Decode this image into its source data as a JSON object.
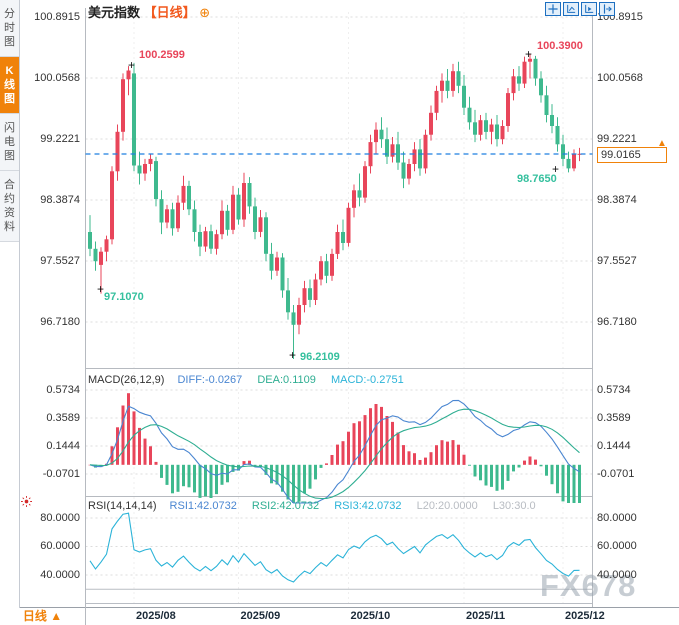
{
  "sidebar": {
    "items": [
      {
        "label": "分时图",
        "active": false
      },
      {
        "label": "K线图",
        "active": true
      },
      {
        "label": "闪电图",
        "active": false
      },
      {
        "label": "合约资料",
        "active": false
      }
    ]
  },
  "header": {
    "title": "美元指数",
    "period_tag": "【日线】",
    "add_icon": "⊕"
  },
  "main_chart": {
    "y_axis_labels": [
      "100.8915",
      "100.0568",
      "99.2221",
      "98.3874",
      "97.5527",
      "96.7180"
    ],
    "annotations": {
      "high1": "100.2599",
      "high2": "100.3900",
      "low1": "97.1070",
      "low2": "96.2109",
      "low3": "98.7650",
      "marker_glyph": "+"
    },
    "price_tag": {
      "value": "99.0165",
      "arrow": "▲"
    }
  },
  "macd_panel": {
    "header": {
      "name": "MACD(26,12,9)",
      "diff": "DIFF:-0.0267",
      "dea": "DEA:0.1109",
      "macd": "MACD:-0.2751"
    },
    "y_axis_labels": [
      "0.5734",
      "0.3589",
      "0.1444",
      "-0.0701"
    ]
  },
  "rsi_panel": {
    "header": {
      "name": "RSI(14,14,14)",
      "rsi1": "RSI1:42.0732",
      "rsi2": "RSI2:42.0732",
      "rsi3": "RSI3:42.0732",
      "l20": "L20:20.0000",
      "l30": "L30:30.0"
    },
    "y_axis_labels": [
      "80.0000",
      "60.0000",
      "40.0000"
    ]
  },
  "x_axis": {
    "labels": [
      "2025/08",
      "2025/09",
      "2025/10",
      "2025/11",
      "2025/12"
    ],
    "period": {
      "label": "日线",
      "arrow": "▲"
    }
  },
  "watermark": "FX678",
  "colors": {
    "up": "#e8455a",
    "down": "#3eb98e",
    "accent_orange": "#f0820a",
    "price_line_blue": "#1f7fe0",
    "diff_blue": "#4a86d1",
    "dea_teal": "#2fae92",
    "macd_cyan": "#2bb3d8",
    "grid": "#dcdcdc",
    "level_gray": "#b9bdc4"
  },
  "chart_data": [
    {
      "type": "candlestick",
      "title": "美元指数 日线",
      "ylabel": "price",
      "ylim": [
        96.05,
        100.95
      ],
      "y_ticks": [
        100.8915,
        100.0568,
        99.2221,
        98.3874,
        97.5527,
        96.718
      ],
      "x_tick_labels": [
        "2025/08",
        "2025/09",
        "2025/10",
        "2025/11",
        "2025/12"
      ],
      "x_tick_days": [
        8,
        27,
        47,
        68,
        86
      ],
      "current_price": 99.0165,
      "annotated_points": [
        {
          "label": "100.2599",
          "day": 8,
          "price": 100.2599,
          "kind": "high"
        },
        {
          "label": "100.3900",
          "day": 80,
          "price": 100.39,
          "kind": "high"
        },
        {
          "label": "97.1070",
          "day": 2,
          "price": 97.107,
          "kind": "low"
        },
        {
          "label": "96.2109",
          "day": 37,
          "price": 96.2109,
          "kind": "low"
        },
        {
          "label": "98.7650",
          "day": 87,
          "price": 98.765,
          "kind": "low"
        }
      ],
      "candles": [
        [
          97.95,
          98.18,
          97.62,
          97.72
        ],
        [
          97.72,
          97.82,
          97.42,
          97.55
        ],
        [
          97.5,
          97.74,
          97.107,
          97.68
        ],
        [
          97.68,
          97.9,
          97.55,
          97.85
        ],
        [
          97.85,
          98.85,
          97.78,
          98.78
        ],
        [
          98.78,
          99.42,
          98.65,
          99.32
        ],
        [
          99.32,
          100.12,
          99.2,
          100.04
        ],
        [
          100.04,
          100.22,
          99.82,
          100.16
        ],
        [
          100.12,
          100.2599,
          98.78,
          98.86
        ],
        [
          98.86,
          99.05,
          98.6,
          98.75
        ],
        [
          98.75,
          98.95,
          98.65,
          98.88
        ],
        [
          98.88,
          99.02,
          98.78,
          98.95
        ],
        [
          98.92,
          98.98,
          98.3,
          98.4
        ],
        [
          98.4,
          98.52,
          97.92,
          98.08
        ],
        [
          98.08,
          98.32,
          98.0,
          98.26
        ],
        [
          98.26,
          98.35,
          97.9,
          98.0
        ],
        [
          98.0,
          98.45,
          97.95,
          98.35
        ],
        [
          98.35,
          98.72,
          98.25,
          98.58
        ],
        [
          98.58,
          98.65,
          98.18,
          98.26
        ],
        [
          98.26,
          98.38,
          97.82,
          97.95
        ],
        [
          97.95,
          98.05,
          97.62,
          97.75
        ],
        [
          97.75,
          98.02,
          97.68,
          97.96
        ],
        [
          97.96,
          98.05,
          97.65,
          97.72
        ],
        [
          97.72,
          97.98,
          97.64,
          97.92
        ],
        [
          97.92,
          98.38,
          97.85,
          98.24
        ],
        [
          98.24,
          98.32,
          97.9,
          97.98
        ],
        [
          97.98,
          98.58,
          97.92,
          98.46
        ],
        [
          98.46,
          98.55,
          98.05,
          98.12
        ],
        [
          98.12,
          98.76,
          98.02,
          98.62
        ],
        [
          98.62,
          98.7,
          98.2,
          98.3
        ],
        [
          98.3,
          98.42,
          97.85,
          97.95
        ],
        [
          97.95,
          98.25,
          97.88,
          98.15
        ],
        [
          98.15,
          98.22,
          97.55,
          97.65
        ],
        [
          97.65,
          97.8,
          97.3,
          97.42
        ],
        [
          97.42,
          97.68,
          97.35,
          97.6
        ],
        [
          97.6,
          97.66,
          97.05,
          97.15
        ],
        [
          97.15,
          97.32,
          96.75,
          96.85
        ],
        [
          96.85,
          96.95,
          96.2109,
          96.68
        ],
        [
          96.68,
          97.05,
          96.55,
          96.95
        ],
        [
          96.95,
          97.28,
          96.85,
          97.18
        ],
        [
          97.18,
          97.3,
          96.92,
          97.02
        ],
        [
          97.02,
          97.38,
          96.95,
          97.3
        ],
        [
          97.3,
          97.62,
          97.22,
          97.55
        ],
        [
          97.55,
          97.65,
          97.25,
          97.35
        ],
        [
          97.35,
          97.72,
          97.28,
          97.65
        ],
        [
          97.65,
          98.05,
          97.58,
          97.95
        ],
        [
          97.95,
          98.12,
          97.7,
          97.8
        ],
        [
          97.8,
          98.35,
          97.75,
          98.28
        ],
        [
          98.28,
          98.6,
          98.15,
          98.52
        ],
        [
          98.52,
          98.75,
          98.3,
          98.42
        ],
        [
          98.42,
          98.92,
          98.35,
          98.85
        ],
        [
          98.85,
          99.28,
          98.75,
          99.18
        ],
        [
          99.18,
          99.45,
          99.02,
          99.35
        ],
        [
          99.35,
          99.52,
          99.1,
          99.22
        ],
        [
          99.22,
          99.38,
          98.88,
          98.98
        ],
        [
          98.98,
          99.25,
          98.9,
          99.15
        ],
        [
          99.15,
          99.32,
          98.8,
          98.9
        ],
        [
          98.9,
          99.05,
          98.55,
          98.68
        ],
        [
          98.68,
          98.95,
          98.6,
          98.88
        ],
        [
          98.88,
          99.18,
          98.78,
          99.08
        ],
        [
          99.08,
          99.22,
          98.72,
          98.82
        ],
        [
          98.82,
          99.35,
          98.75,
          99.28
        ],
        [
          99.28,
          99.68,
          99.2,
          99.58
        ],
        [
          99.58,
          99.95,
          99.48,
          99.88
        ],
        [
          99.88,
          100.12,
          99.72,
          100.02
        ],
        [
          100.02,
          100.18,
          99.78,
          99.88
        ],
        [
          99.88,
          100.25,
          99.8,
          100.15
        ],
        [
          100.15,
          100.28,
          99.85,
          99.95
        ],
        [
          99.95,
          100.1,
          99.55,
          99.65
        ],
        [
          99.65,
          99.8,
          99.35,
          99.45
        ],
        [
          99.45,
          99.62,
          99.18,
          99.28
        ],
        [
          99.28,
          99.55,
          99.2,
          99.48
        ],
        [
          99.48,
          99.58,
          99.22,
          99.32
        ],
        [
          99.32,
          99.5,
          99.15,
          99.42
        ],
        [
          99.42,
          99.55,
          99.12,
          99.22
        ],
        [
          99.22,
          99.48,
          99.15,
          99.4
        ],
        [
          99.4,
          99.92,
          99.32,
          99.85
        ],
        [
          99.85,
          100.18,
          99.75,
          100.08
        ],
        [
          100.08,
          100.22,
          99.88,
          99.98
        ],
        [
          99.98,
          100.35,
          99.92,
          100.28
        ],
        [
          100.28,
          100.39,
          100.05,
          100.32
        ],
        [
          100.32,
          100.36,
          99.95,
          100.05
        ],
        [
          100.05,
          100.15,
          99.72,
          99.82
        ],
        [
          99.82,
          99.95,
          99.45,
          99.55
        ],
        [
          99.55,
          99.7,
          99.3,
          99.4
        ],
        [
          99.4,
          99.52,
          99.05,
          99.15
        ],
        [
          99.15,
          99.28,
          98.85,
          98.95
        ],
        [
          98.95,
          99.05,
          98.765,
          98.82
        ],
        [
          98.82,
          99.08,
          98.78,
          99.0165
        ],
        [
          99.0165,
          99.1,
          98.92,
          99.02
        ]
      ]
    },
    {
      "type": "bar",
      "name": "MACD",
      "params": [
        26,
        12,
        9
      ],
      "latest": {
        "diff": -0.0267,
        "dea": 0.1109,
        "macd": -0.2751
      },
      "y_ticks": [
        0.5734,
        0.3589,
        0.1444,
        -0.0701
      ],
      "note": "histogram = 2*(DIFF-DEA), derived from candle closes"
    },
    {
      "type": "line",
      "name": "RSI",
      "params": [
        14,
        14,
        14
      ],
      "latest": {
        "rsi1": 42.0732,
        "rsi2": 42.0732,
        "rsi3": 42.0732
      },
      "levels": {
        "l20": 20.0,
        "l30": 30.0
      },
      "y_ticks": [
        80,
        60,
        40
      ],
      "note": "RSI(14) line derived from candle closes"
    }
  ]
}
